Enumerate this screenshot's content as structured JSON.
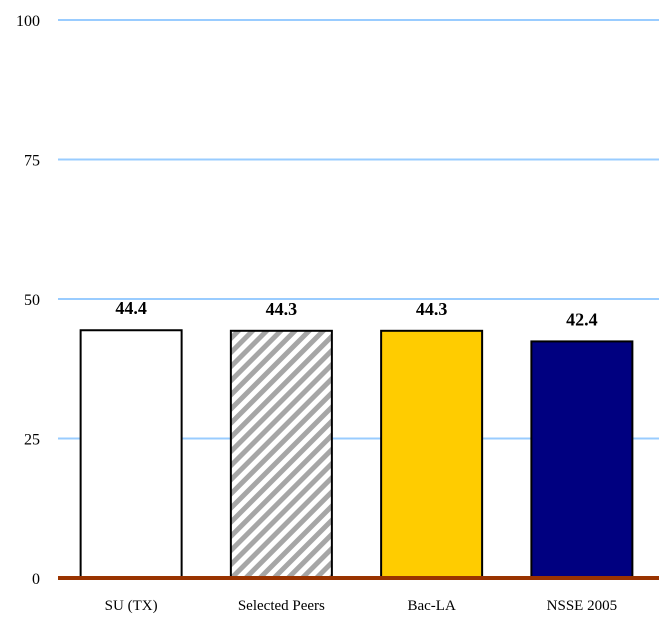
{
  "chart_data": {
    "type": "bar",
    "categories": [
      "SU (TX)",
      "Selected Peers",
      "Bac-LA",
      "NSSE 2005"
    ],
    "values": [
      44.4,
      44.3,
      44.3,
      42.4
    ],
    "data_labels": [
      "44.4",
      "44.3",
      "44.3",
      "42.4"
    ],
    "ylim": [
      0,
      100
    ],
    "yticks": [
      0,
      25,
      50,
      75,
      100
    ],
    "grid": true,
    "gridline_color": "#99ccff",
    "baseline_color": "#993300",
    "bar_styles": [
      {
        "fill": "#ffffff",
        "pattern": "none"
      },
      {
        "fill": "#ffffff",
        "pattern": "diagonal-stripes",
        "stripe_color": "#a6a6a6"
      },
      {
        "fill": "#ffcc00",
        "pattern": "none"
      },
      {
        "fill": "#000080",
        "pattern": "none"
      }
    ]
  }
}
